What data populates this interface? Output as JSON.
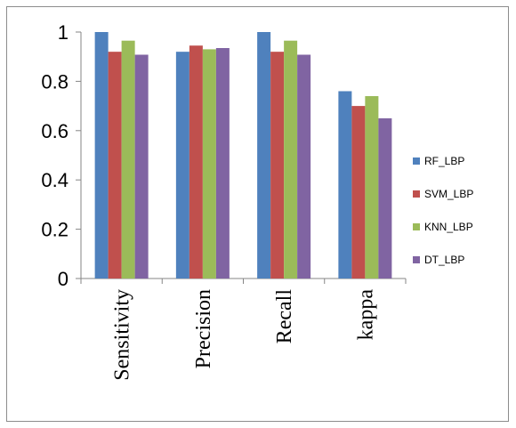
{
  "chart_data": {
    "type": "bar",
    "categories": [
      "Sensitivity",
      "Precision",
      "Recall",
      "kappa"
    ],
    "series": [
      {
        "name": "RF_LBP",
        "color": "#4f81bd",
        "values": [
          1.0,
          0.92,
          1.0,
          0.76
        ]
      },
      {
        "name": "SVM_LBP",
        "color": "#c0504d",
        "values": [
          0.92,
          0.945,
          0.92,
          0.7
        ]
      },
      {
        "name": "KNN_LBP",
        "color": "#9bbb59",
        "values": [
          0.965,
          0.93,
          0.965,
          0.74
        ]
      },
      {
        "name": "DT_LBP",
        "color": "#8064a2",
        "values": [
          0.908,
          0.935,
          0.908,
          0.65
        ]
      }
    ],
    "y_ticks": [
      "0",
      "0.2",
      "0.4",
      "0.6",
      "0.8",
      "1"
    ],
    "ylim": [
      0,
      1
    ],
    "grid": false,
    "legend_position": "right"
  }
}
